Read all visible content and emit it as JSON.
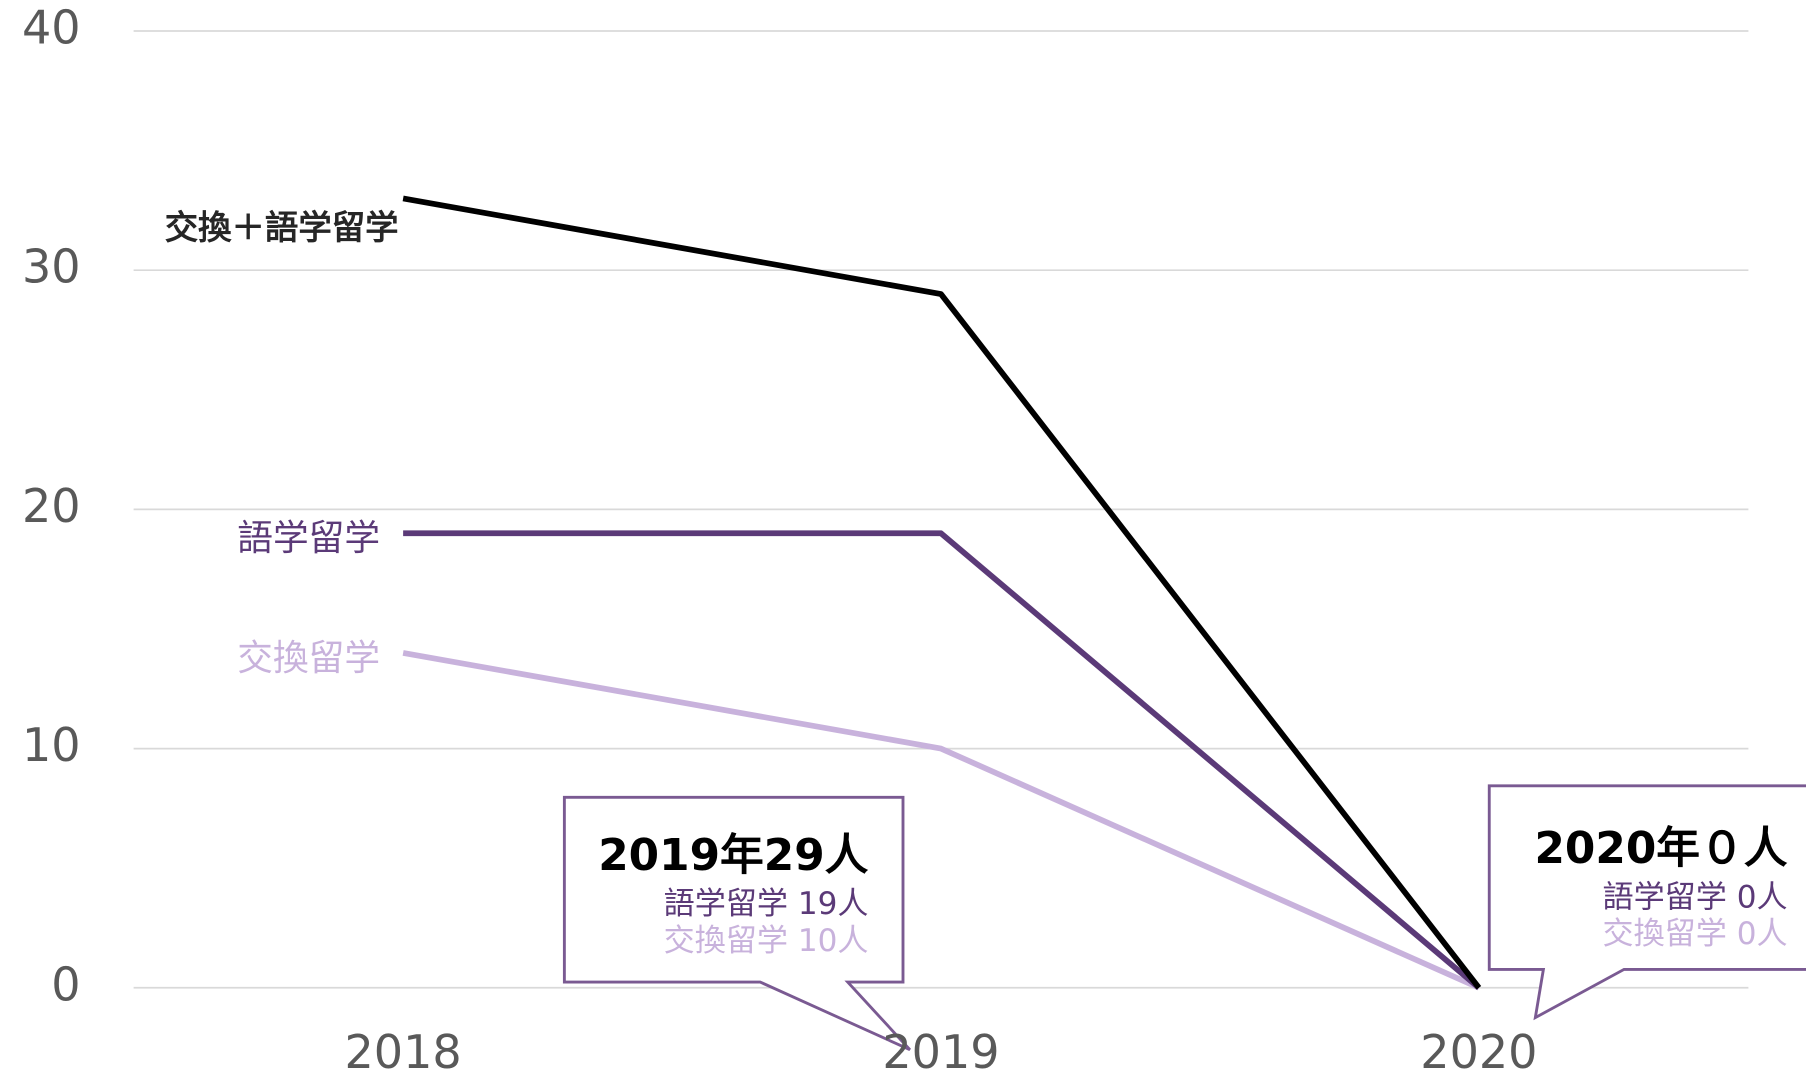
{
  "chart_data": {
    "type": "line",
    "categories": [
      "2018",
      "2019",
      "2020"
    ],
    "series": [
      {
        "name": "交換＋語学留学",
        "color": "#000000",
        "values": [
          33,
          29,
          0
        ]
      },
      {
        "name": "語学留学",
        "color": "#5b3a78",
        "values": [
          19,
          19,
          0
        ]
      },
      {
        "name": "交換留学",
        "color": "#c8b2dc",
        "values": [
          14,
          10,
          0
        ]
      }
    ],
    "ylim": [
      0,
      40
    ],
    "yticks": [
      0,
      10,
      20,
      30,
      40
    ],
    "grid": true,
    "annotations": [
      {
        "title": "2019年29人",
        "lines": [
          "語学留学 19人",
          "交換留学 10人"
        ]
      },
      {
        "title": "2020年０人",
        "lines": [
          "語学留学 0人",
          "交換留学 0人"
        ]
      }
    ]
  }
}
